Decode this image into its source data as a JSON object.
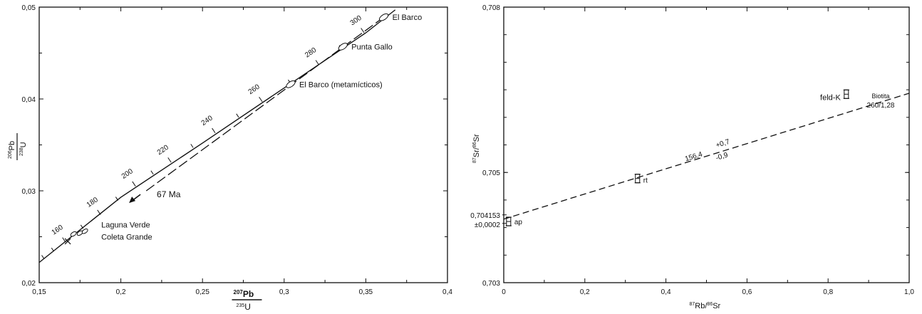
{
  "chart_data": [
    {
      "type": "line",
      "name_text": "",
      "x_range": [
        0.15,
        0.4
      ],
      "y_range": [
        0.02,
        0.05
      ],
      "x_ticks": [
        {
          "v": 0.15,
          "label": "0,15"
        },
        {
          "v": 0.2,
          "label": "0,2"
        },
        {
          "v": 0.25,
          "label": "0,25"
        },
        {
          "v": 0.3,
          "label": "0,3"
        },
        {
          "v": 0.35,
          "label": "0,35"
        },
        {
          "v": 0.4,
          "label": "0,4"
        }
      ],
      "y_ticks": [
        {
          "v": 0.02,
          "label": "0,02"
        },
        {
          "v": 0.03,
          "label": "0,03"
        },
        {
          "v": 0.04,
          "label": "0,04"
        },
        {
          "v": 0.05,
          "label": "0,05"
        }
      ],
      "xlabel": {
        "num": "207Pb",
        "den": "235U"
      },
      "ylabel": {
        "num": "206Pb",
        "den": "238U"
      },
      "concordia": [
        [
          0.15,
          0.0222
        ],
        [
          0.2,
          0.0293
        ],
        [
          0.25,
          0.0352
        ],
        [
          0.3,
          0.0412
        ],
        [
          0.35,
          0.0472
        ],
        [
          0.368,
          0.0497
        ]
      ],
      "age_ticks": [
        {
          "age": "160",
          "x": 0.1662,
          "y": 0.0244
        },
        {
          "age": "180",
          "x": 0.1876,
          "y": 0.0274
        },
        {
          "age": "200",
          "x": 0.209,
          "y": 0.0305
        },
        {
          "age": "220",
          "x": 0.2308,
          "y": 0.0331
        },
        {
          "age": "240",
          "x": 0.2578,
          "y": 0.0363
        },
        {
          "age": "260",
          "x": 0.2866,
          "y": 0.0397
        },
        {
          "age": "280",
          "x": 0.3213,
          "y": 0.0437
        },
        {
          "age": "300",
          "x": 0.349,
          "y": 0.0472
        }
      ],
      "discordia": [
        [
          0.361,
          0.0489
        ],
        [
          0.214,
          0.0298
        ]
      ],
      "discordia_label": "67 Ma",
      "samples": [
        {
          "label": "El Barco",
          "x": 0.361,
          "y": 0.0489
        },
        {
          "label": "Punta Gallo",
          "x": 0.336,
          "y": 0.0457
        },
        {
          "label": "El Barco (metamícticos)",
          "x": 0.304,
          "y": 0.0416
        }
      ],
      "cluster_label": [
        "Laguna Verde",
        "Coleta Grande"
      ],
      "cluster_points": [
        [
          0.171,
          0.0253
        ],
        [
          0.175,
          0.0254
        ],
        [
          0.178,
          0.0256
        ]
      ],
      "cluster_x": [
        0.1675,
        0.0245
      ]
    },
    {
      "type": "line",
      "x_range": [
        0,
        1.0
      ],
      "y_range": [
        0.703,
        0.708
      ],
      "x_ticks": [
        {
          "v": 0,
          "label": "0"
        },
        {
          "v": 0.2,
          "label": "0,2"
        },
        {
          "v": 0.4,
          "label": "0,4"
        },
        {
          "v": 0.6,
          "label": "0,6"
        },
        {
          "v": 0.8,
          "label": "0,8"
        },
        {
          "v": 1.0,
          "label": "1,0"
        }
      ],
      "y_ticks": [
        {
          "v": 0.703,
          "label": "0,703"
        },
        {
          "v": 0.705,
          "label": "0,705"
        },
        {
          "v": 0.708,
          "label": "0,708"
        }
      ],
      "xlabel": "87Rb/86Sr",
      "ylabel": "87Sr/86Sr",
      "isochron": [
        [
          0,
          0.704153
        ],
        [
          1.0,
          0.706437
        ]
      ],
      "intercept_label": [
        "0,704153",
        "±0,0002"
      ],
      "isochron_label": "156,4",
      "isochron_err_plus": "+0,7",
      "isochron_err_minus": "-0,9",
      "samples": [
        {
          "label": "ap",
          "x": 0.012,
          "y": 0.70411
        },
        {
          "label": "rt",
          "x": 0.33,
          "y": 0.70489
        },
        {
          "label": "feld-K",
          "x": 0.845,
          "y": 0.70642
        }
      ],
      "biotita_label": [
        "Biotita",
        "260/1,28"
      ]
    }
  ]
}
